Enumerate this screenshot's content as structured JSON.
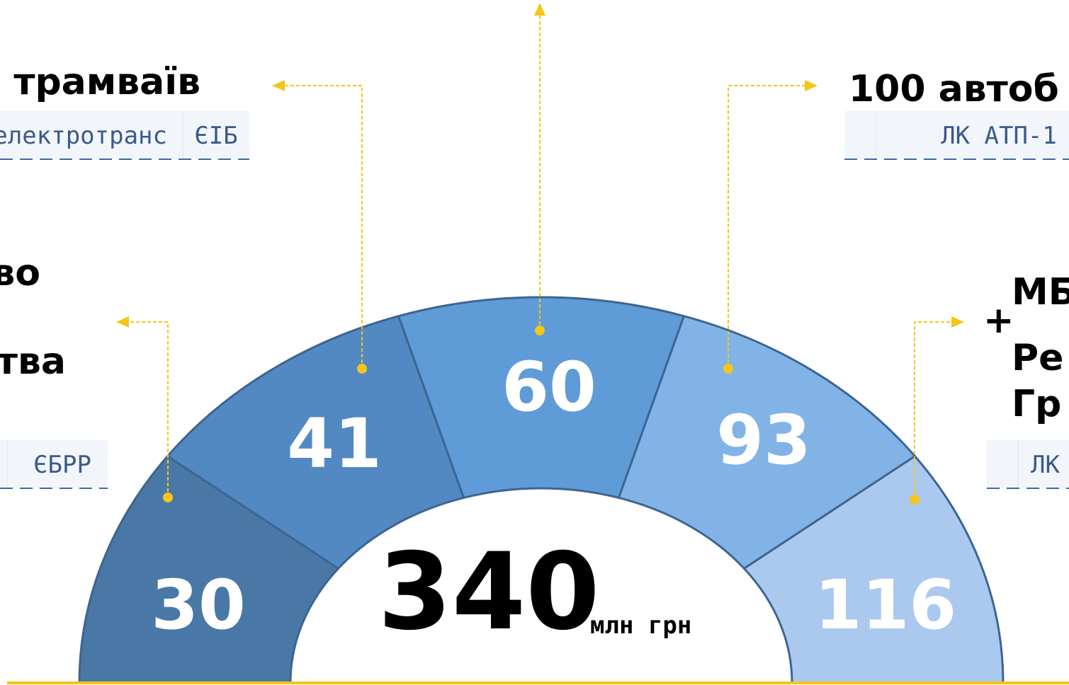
{
  "segments": [
    {
      "value": "30"
    },
    {
      "value": "41"
    },
    {
      "value": "60"
    },
    {
      "value": "93"
    },
    {
      "value": "116"
    }
  ],
  "total": {
    "value": "340",
    "unit": "млн грн"
  },
  "left_top": {
    "title": "трамваїв",
    "operator": "зелектротранс",
    "lender": "ЄІБ"
  },
  "left_middle": {
    "line1": "во",
    "line2": "тва",
    "lender": "ЄБРР"
  },
  "right_top": {
    "title": "100 автоб",
    "operator": "ЛК АТП-1"
  },
  "right_middle": {
    "plus": "+",
    "line1": "МБ",
    "line2": "Ре",
    "line3": "Гр",
    "operator": "ЛК"
  }
}
